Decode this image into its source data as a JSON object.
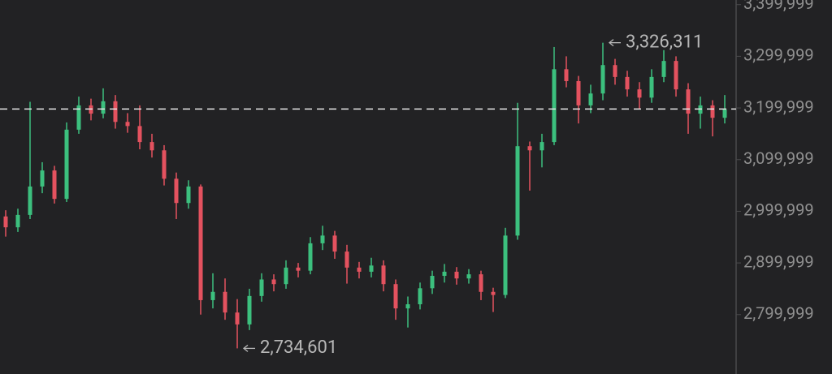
{
  "chart_data": {
    "type": "candlestick",
    "up_color": "#3cc07e",
    "down_color": "#e4525f",
    "ylim": [
      2685000,
      3409000
    ],
    "yticks": [
      {
        "value": 3399999,
        "label": "3,399,999"
      },
      {
        "value": 3299999,
        "label": "3,299,999"
      },
      {
        "value": 3199999,
        "label": "3,199,999"
      },
      {
        "value": 3099999,
        "label": "3,099,999"
      },
      {
        "value": 2999999,
        "label": "2,999,999"
      },
      {
        "value": 2899999,
        "label": "2,899,999"
      },
      {
        "value": 2799999,
        "label": "2,799,999"
      }
    ],
    "price_line": 3198000,
    "annotations": [
      {
        "value": 3326311,
        "label": "3,326,311"
      },
      {
        "value": 2734601,
        "label": "2,734,601"
      }
    ],
    "open": [
      2990000,
      2969000,
      2993000,
      3048000,
      3079000,
      3024000,
      3158000,
      3205000,
      3189000,
      3213000,
      3173000,
      3165000,
      3134000,
      3118000,
      3063000,
      3016000,
      3048000,
      2828000,
      2844000,
      2804000,
      2781000,
      2836000,
      2868000,
      2859000,
      2891000,
      2885000,
      2938000,
      2953000,
      2922000,
      2891000,
      2883000,
      2895000,
      2859000,
      2812000,
      2820000,
      2851000,
      2875000,
      2883000,
      2870000,
      2878000,
      2844000,
      2838000,
      2953000,
      3126000,
      3118000,
      3134000,
      3275000,
      3252000,
      3205000,
      3228000,
      3283000,
      3260000,
      3236000,
      3220000,
      3260000,
      3291000,
      3236000,
      3189000,
      3205000,
      3181000
    ],
    "high": [
      3002000,
      3005000,
      3212000,
      3095000,
      3088000,
      3172000,
      3222000,
      3218000,
      3238000,
      3225000,
      3190000,
      3205000,
      3150000,
      3128000,
      3075000,
      3060000,
      3052000,
      2880000,
      2870000,
      2830000,
      2850000,
      2880000,
      2878000,
      2905000,
      2900000,
      2950000,
      2972000,
      2962000,
      2935000,
      2902000,
      2910000,
      2905000,
      2868000,
      2835000,
      2862000,
      2885000,
      2898000,
      2892000,
      2888000,
      2885000,
      2852000,
      2968000,
      3210000,
      3135000,
      3150000,
      3318000,
      3300000,
      3262000,
      3245000,
      3326311,
      3295000,
      3272000,
      3250000,
      3275000,
      3312000,
      3300000,
      3248000,
      3222000,
      3215000,
      3225000
    ],
    "low": [
      2951000,
      2960000,
      2985000,
      3035000,
      3015000,
      3018000,
      3150000,
      3176000,
      3180000,
      3160000,
      3152000,
      3120000,
      3104000,
      3050000,
      2985000,
      3005000,
      2800000,
      2812000,
      2790000,
      2734601,
      2770000,
      2825000,
      2845000,
      2850000,
      2872000,
      2878000,
      2925000,
      2908000,
      2860000,
      2870000,
      2872000,
      2845000,
      2790000,
      2775000,
      2810000,
      2840000,
      2862000,
      2858000,
      2860000,
      2828000,
      2805000,
      2832000,
      2945000,
      3040000,
      3085000,
      3128000,
      3240000,
      3170000,
      3190000,
      3215000,
      3245000,
      3222000,
      3198000,
      3210000,
      3250000,
      3222000,
      3150000,
      3160000,
      3145000,
      3170000
    ],
    "close": [
      2969000,
      2993000,
      3048000,
      3079000,
      3024000,
      3158000,
      3205000,
      3189000,
      3213000,
      3173000,
      3165000,
      3134000,
      3118000,
      3063000,
      3016000,
      3048000,
      2828000,
      2844000,
      2804000,
      2781000,
      2836000,
      2868000,
      2859000,
      2891000,
      2885000,
      2938000,
      2953000,
      2922000,
      2891000,
      2883000,
      2895000,
      2859000,
      2812000,
      2820000,
      2851000,
      2875000,
      2883000,
      2870000,
      2878000,
      2844000,
      2838000,
      2953000,
      3126000,
      3118000,
      3134000,
      3275000,
      3252000,
      3205000,
      3228000,
      3283000,
      3260000,
      3236000,
      3220000,
      3260000,
      3291000,
      3236000,
      3189000,
      3205000,
      3181000,
      3197000
    ]
  }
}
